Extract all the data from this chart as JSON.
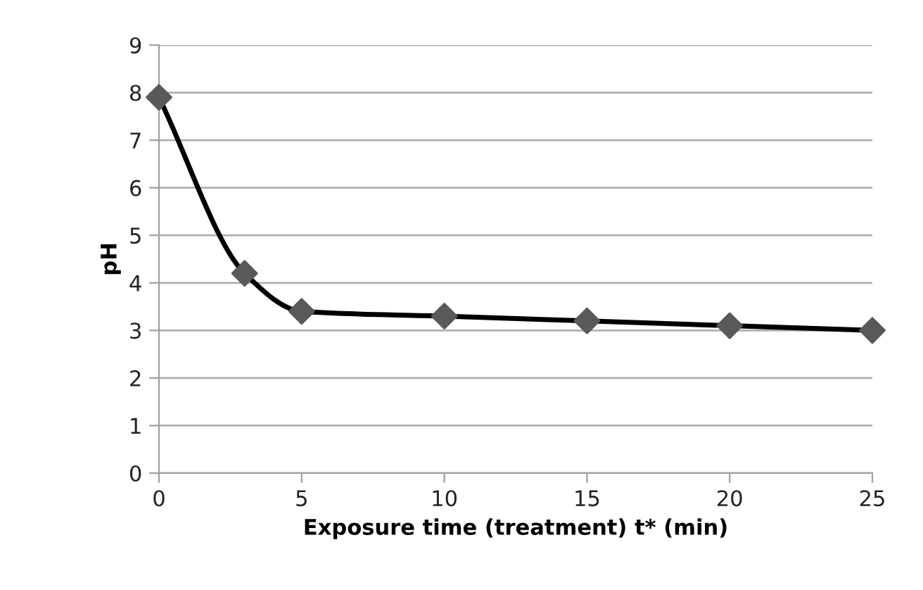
{
  "chart_data": {
    "type": "line",
    "xlabel": "Exposure time (treatment) t* (min)",
    "ylabel": "pH",
    "x": [
      0,
      3,
      5,
      10,
      15,
      20,
      25
    ],
    "series": [
      {
        "color": "#000000",
        "values": [
          7.9,
          4.2,
          3.4,
          3.3,
          3.2,
          3.1,
          3.0
        ]
      }
    ],
    "xlim": [
      0,
      25
    ],
    "ylim": [
      0,
      9
    ],
    "xticks": [
      0,
      5,
      10,
      15,
      20,
      25
    ],
    "yticks": [
      0,
      1,
      2,
      3,
      4,
      5,
      6,
      7,
      8,
      9
    ],
    "grid": "y",
    "marker": "diamond",
    "line_style": "solid"
  }
}
